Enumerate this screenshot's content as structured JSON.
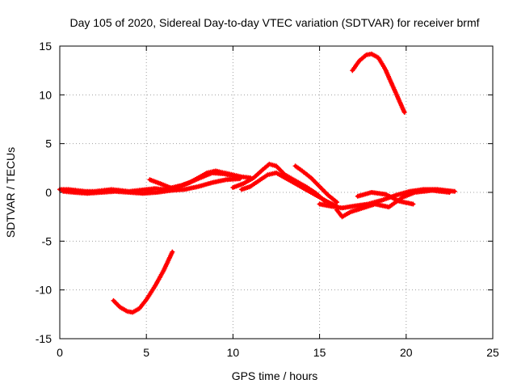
{
  "chart_data": {
    "type": "scatter",
    "title": "Day 105 of 2020, Sidereal Day-to-day VTEC variation (SDTVAR) for receiver brmf",
    "xlabel": "GPS time / hours",
    "ylabel": "SDTVAR / TECUs",
    "xlim": [
      0,
      25
    ],
    "ylim": [
      -15,
      15
    ],
    "xticks": [
      0,
      5,
      10,
      15,
      20,
      25
    ],
    "yticks": [
      -15,
      -10,
      -5,
      0,
      5,
      10,
      15
    ],
    "xtick_labels": [
      "0",
      "5",
      "10",
      "15",
      "20",
      "25"
    ],
    "ytick_labels": [
      "-15",
      "-10",
      "-5",
      "0",
      "5",
      "10",
      "15"
    ],
    "grid": true,
    "legend": "none",
    "series_color": "#ff0000",
    "series": [
      {
        "name": "sat-track-main-1",
        "x": [
          0.0,
          0.5,
          1.0,
          1.5,
          2.0,
          2.5,
          3.0,
          3.5,
          4.0,
          4.5,
          5.0,
          5.5,
          6.0,
          6.5,
          7.0,
          7.5,
          8.0,
          8.5,
          9.0,
          9.5,
          10.0,
          10.5,
          11.0
        ],
        "y": [
          0.3,
          0.3,
          0.2,
          0.1,
          0.1,
          0.2,
          0.3,
          0.2,
          0.1,
          0.2,
          0.3,
          0.4,
          0.3,
          0.5,
          0.7,
          1.0,
          1.5,
          2.0,
          2.2,
          2.0,
          1.8,
          1.6,
          1.5
        ]
      },
      {
        "name": "sat-track-main-2",
        "x": [
          0.2,
          0.8,
          1.6,
          2.4,
          3.2,
          4.0,
          4.8,
          5.6,
          6.4,
          7.2,
          8.0,
          8.8,
          9.6,
          10.4
        ],
        "y": [
          0.1,
          0.0,
          -0.1,
          0.0,
          0.1,
          0.0,
          -0.1,
          0.0,
          0.2,
          0.3,
          0.6,
          1.0,
          1.3,
          1.4
        ]
      },
      {
        "name": "sat-track-mid-1",
        "x": [
          5.2,
          5.8,
          6.5,
          7.2,
          8.0,
          8.8,
          9.5,
          10.2
        ],
        "y": [
          1.3,
          0.9,
          0.4,
          0.8,
          1.4,
          2.0,
          1.9,
          1.6
        ]
      },
      {
        "name": "sat-track-mid-2",
        "x": [
          10.0,
          10.6,
          11.2,
          11.7,
          12.1,
          12.5,
          13.0,
          13.6,
          14.2,
          14.8,
          15.3
        ],
        "y": [
          0.5,
          0.9,
          1.5,
          2.3,
          2.9,
          2.7,
          1.8,
          1.2,
          0.6,
          -0.1,
          -0.9
        ]
      },
      {
        "name": "sat-track-mid-3",
        "x": [
          10.5,
          11.0,
          11.5,
          12.0,
          12.5,
          13.0,
          13.5,
          14.0,
          14.5,
          15.0,
          15.5,
          16.0
        ],
        "y": [
          0.3,
          0.6,
          1.2,
          1.8,
          2.0,
          1.5,
          1.0,
          0.5,
          0.0,
          -0.5,
          -1.0,
          -1.4
        ]
      },
      {
        "name": "sat-track-mid-4",
        "x": [
          13.6,
          14.0,
          14.5,
          15.0,
          15.5,
          16.0
        ],
        "y": [
          2.7,
          2.2,
          1.5,
          0.6,
          -0.3,
          -1.0
        ]
      },
      {
        "name": "sat-track-late-1",
        "x": [
          15.0,
          15.6,
          16.3,
          17.0,
          17.8,
          18.6,
          19.4,
          20.2,
          21.0,
          21.8,
          22.8
        ],
        "y": [
          -1.2,
          -1.4,
          -1.6,
          -1.4,
          -1.2,
          -0.8,
          -0.3,
          0.1,
          0.3,
          0.3,
          0.1
        ]
      },
      {
        "name": "sat-track-late-2",
        "x": [
          16.0,
          16.3,
          16.8,
          17.5,
          18.2,
          19.0,
          19.8,
          20.5,
          21.5,
          22.5
        ],
        "y": [
          -1.8,
          -2.5,
          -2.0,
          -1.6,
          -1.2,
          -1.5,
          -0.5,
          0.0,
          0.2,
          0.0
        ]
      },
      {
        "name": "sat-track-late-3",
        "x": [
          17.2,
          18.0,
          18.8,
          19.6,
          20.4
        ],
        "y": [
          -0.4,
          0.0,
          -0.2,
          -0.9,
          -1.2
        ]
      },
      {
        "name": "sat-track-low-arc",
        "x": [
          3.1,
          3.5,
          3.9,
          4.2,
          4.6,
          5.0,
          5.5,
          6.0,
          6.5
        ],
        "y": [
          -11.1,
          -11.8,
          -12.2,
          -12.3,
          -11.9,
          -11.0,
          -9.6,
          -8.0,
          -6.1
        ]
      },
      {
        "name": "sat-track-high-arc",
        "x": [
          16.9,
          17.3,
          17.7,
          18.0,
          18.4,
          18.8,
          19.2,
          19.5,
          19.9
        ],
        "y": [
          12.5,
          13.5,
          14.1,
          14.2,
          13.8,
          12.6,
          11.0,
          9.8,
          8.2
        ]
      }
    ]
  }
}
